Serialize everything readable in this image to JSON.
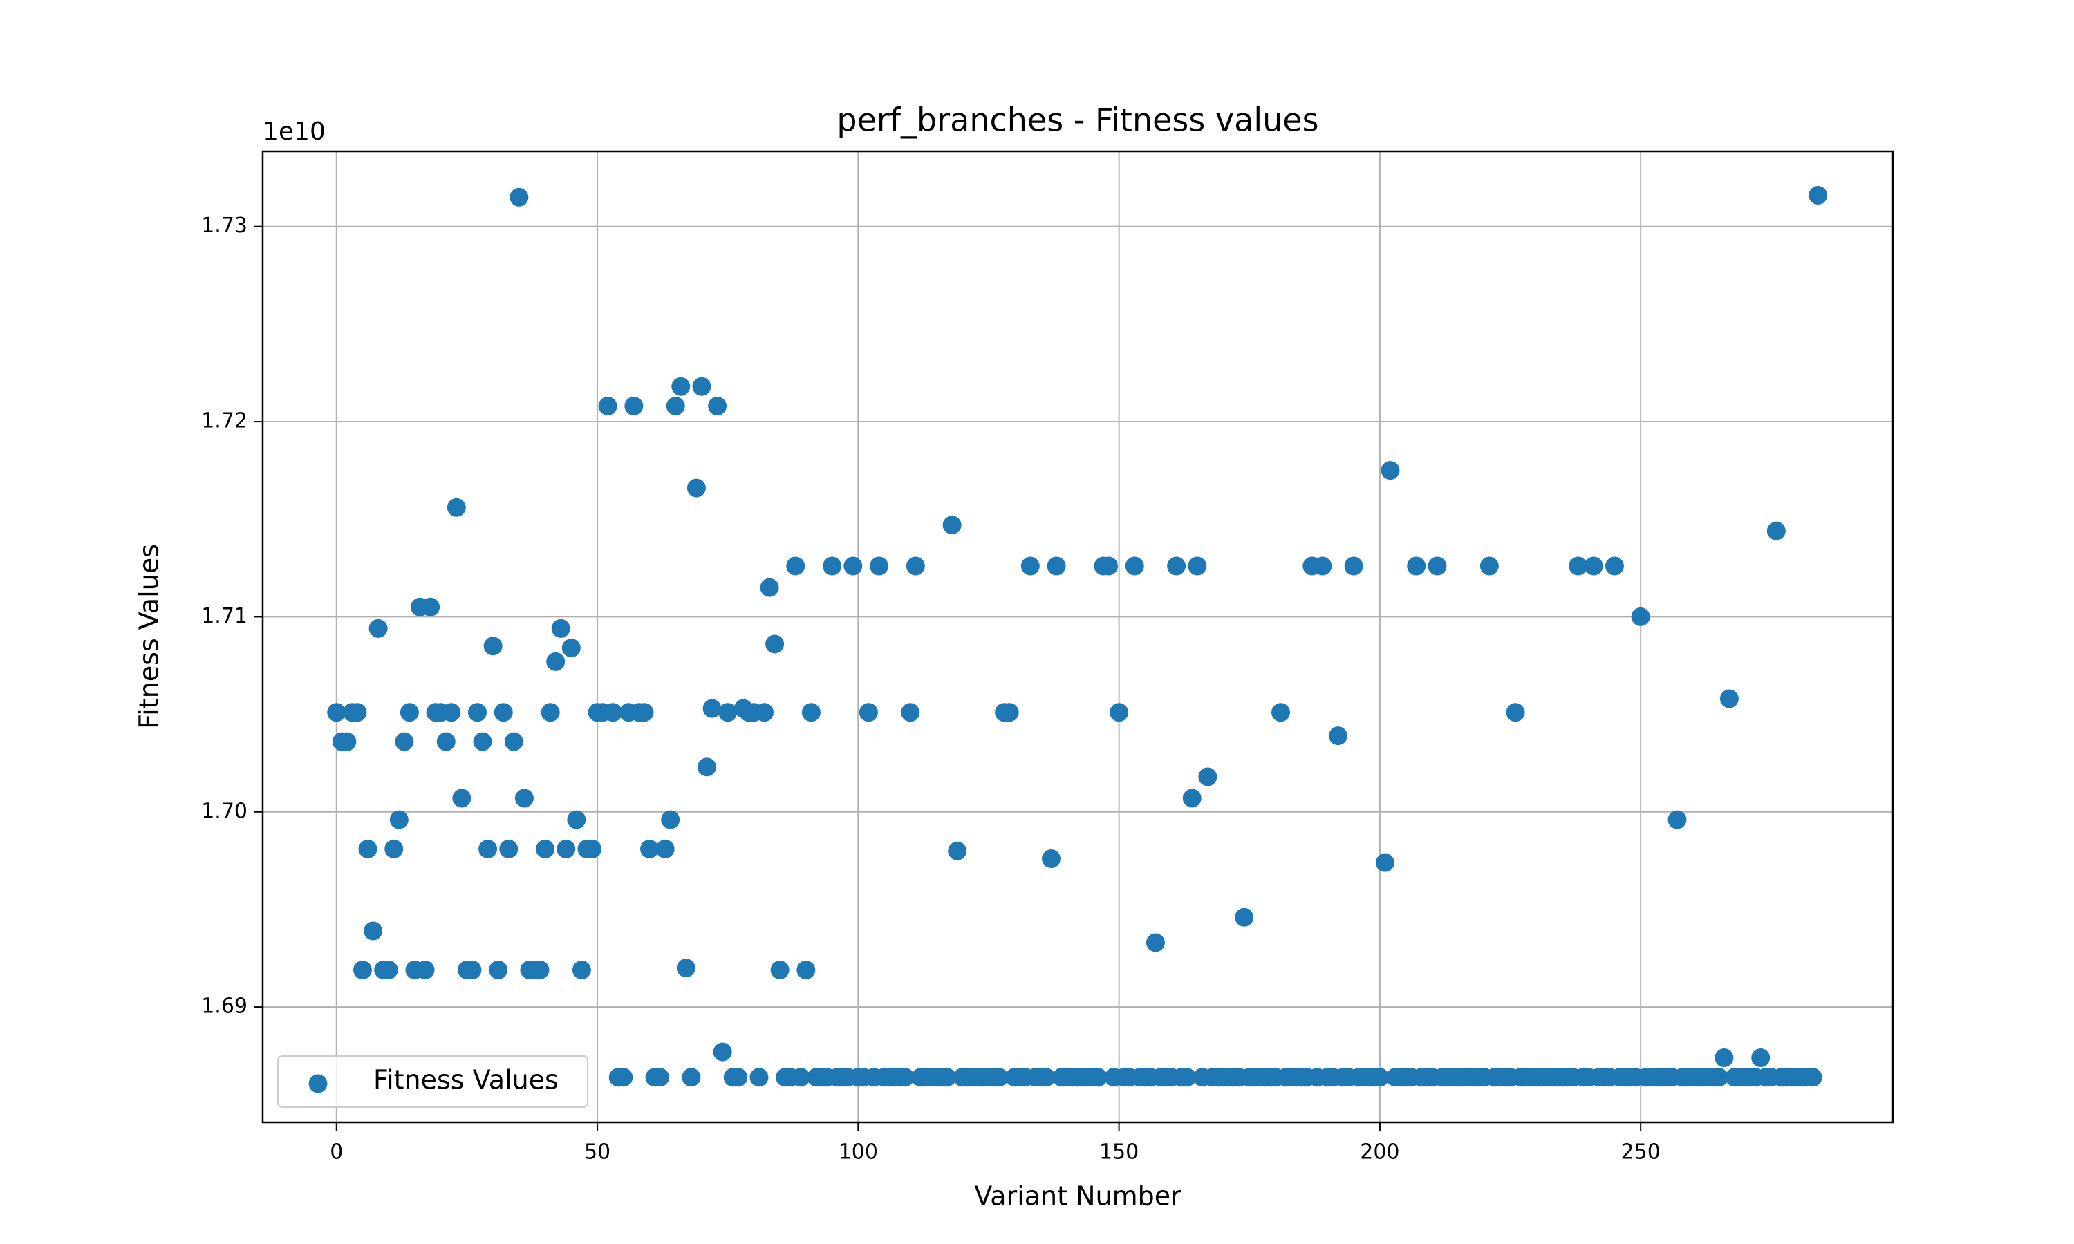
{
  "chart_data": {
    "type": "scatter",
    "title": "perf_branches - Fitness values",
    "xlabel": "Variant Number",
    "ylabel": "Fitness Values",
    "y_offset_label": "1e10",
    "xlim": [
      -14.15,
      298.35
    ],
    "ylim": [
      1.68409,
      1.73385
    ],
    "xticks": [
      0,
      50,
      100,
      150,
      200,
      250
    ],
    "yticks": [
      {
        "value": 1.69,
        "label": "1.69"
      },
      {
        "value": 1.7,
        "label": "1.70"
      },
      {
        "value": 1.71,
        "label": "1.71"
      },
      {
        "value": 1.72,
        "label": "1.72"
      },
      {
        "value": 1.73,
        "label": "1.73"
      }
    ],
    "grid": true,
    "legend": "lower left",
    "series": [
      {
        "name": "Fitness Values",
        "color": "#1f77b4",
        "x": [
          0,
          1,
          2,
          3,
          4,
          5,
          6,
          7,
          8,
          9,
          10,
          11,
          12,
          13,
          14,
          15,
          16,
          17,
          18,
          19,
          20,
          21,
          22,
          23,
          24,
          25,
          26,
          27,
          28,
          29,
          30,
          31,
          32,
          33,
          34,
          35,
          36,
          37,
          38,
          39,
          40,
          41,
          42,
          43,
          44,
          45,
          46,
          47,
          48,
          49,
          50,
          51,
          52,
          53,
          54,
          55,
          56,
          57,
          58,
          59,
          60,
          61,
          62,
          63,
          64,
          65,
          66,
          67,
          68,
          69,
          70,
          71,
          72,
          73,
          74,
          75,
          76,
          77,
          78,
          79,
          80,
          81,
          82,
          83,
          84,
          85,
          86,
          87,
          88,
          89,
          90,
          91,
          92,
          93,
          94,
          95,
          96,
          97,
          98,
          99,
          100,
          101,
          102,
          103,
          104,
          105,
          106,
          107,
          108,
          109,
          110,
          111,
          112,
          113,
          114,
          115,
          116,
          117,
          118,
          119,
          120,
          121,
          122,
          123,
          124,
          125,
          126,
          127,
          128,
          129,
          130,
          131,
          132,
          133,
          134,
          135,
          136,
          137,
          138,
          139,
          140,
          141,
          142,
          143,
          144,
          145,
          146,
          147,
          148,
          149,
          150,
          151,
          152,
          153,
          154,
          155,
          156,
          157,
          158,
          159,
          160,
          161,
          162,
          163,
          164,
          165,
          166,
          167,
          168,
          169,
          170,
          171,
          172,
          173,
          174,
          175,
          176,
          177,
          178,
          179,
          180,
          181,
          182,
          183,
          184,
          185,
          186,
          187,
          188,
          189,
          190,
          191,
          192,
          193,
          194,
          195,
          196,
          197,
          198,
          199,
          200,
          201,
          202,
          203,
          204,
          205,
          206,
          207,
          208,
          209,
          210,
          211,
          212,
          213,
          214,
          215,
          216,
          217,
          218,
          219,
          220,
          221,
          222,
          223,
          224,
          225,
          226,
          227,
          228,
          229,
          230,
          231,
          232,
          233,
          234,
          235,
          236,
          237,
          238,
          239,
          240,
          241,
          242,
          243,
          244,
          245,
          246,
          247,
          248,
          249,
          250,
          251,
          252,
          253,
          254,
          255,
          256,
          257,
          258,
          259,
          260,
          261,
          262,
          263,
          264,
          265,
          266,
          267,
          268,
          269,
          270,
          271,
          272,
          273,
          274,
          275,
          276,
          277,
          278,
          279,
          280,
          281,
          282,
          283,
          284
        ],
        "values": [
          1.7051,
          1.7036,
          1.7036,
          1.7051,
          1.7051,
          1.6919,
          1.6981,
          1.6939,
          1.7094,
          1.6919,
          1.6919,
          1.6981,
          1.6996,
          1.7036,
          1.7051,
          1.6919,
          1.7105,
          1.6919,
          1.7105,
          1.7051,
          1.7051,
          1.7036,
          1.7051,
          1.7156,
          1.7007,
          1.6919,
          1.6919,
          1.7051,
          1.7036,
          1.6981,
          1.7085,
          1.6919,
          1.7051,
          1.6981,
          1.7036,
          1.7315,
          1.7007,
          1.6919,
          1.6919,
          1.6919,
          1.6981,
          1.7051,
          1.7077,
          1.7094,
          1.6981,
          1.7084,
          1.6996,
          1.6919,
          1.6981,
          1.6981,
          1.7051,
          1.7051,
          1.7208,
          1.7051,
          1.6864,
          1.6864,
          1.7051,
          1.7208,
          1.7051,
          1.7051,
          1.6981,
          1.6864,
          1.6864,
          1.6981,
          1.6996,
          1.7208,
          1.7218,
          1.692,
          1.6864,
          1.7166,
          1.7218,
          1.7023,
          1.7053,
          1.7208,
          1.6877,
          1.7051,
          1.6864,
          1.6864,
          1.7053,
          1.7051,
          1.7051,
          1.6864,
          1.7051,
          1.7115,
          1.7086,
          1.6919,
          1.6864,
          1.6864,
          1.7126,
          1.6864,
          1.6919,
          1.7051,
          1.6864,
          1.6864,
          1.6864,
          1.7126,
          1.6864,
          1.6864,
          1.6864,
          1.7126,
          1.6864,
          1.6864,
          1.7051,
          1.6864,
          1.7126,
          1.6864,
          1.6864,
          1.6864,
          1.6864,
          1.6864,
          1.7051,
          1.7126,
          1.6864,
          1.6864,
          1.6864,
          1.6864,
          1.6864,
          1.6864,
          1.7147,
          1.698,
          1.6864,
          1.6864,
          1.6864,
          1.6864,
          1.6864,
          1.6864,
          1.6864,
          1.6864,
          1.7051,
          1.7051,
          1.6864,
          1.6864,
          1.6864,
          1.7126,
          1.6864,
          1.6864,
          1.6864,
          1.6976,
          1.7126,
          1.6864,
          1.6864,
          1.6864,
          1.6864,
          1.6864,
          1.6864,
          1.6864,
          1.6864,
          1.7126,
          1.7126,
          1.6864,
          1.7051,
          1.6864,
          1.6864,
          1.7126,
          1.6864,
          1.6864,
          1.6864,
          1.6933,
          1.6864,
          1.6864,
          1.6864,
          1.7126,
          1.6864,
          1.6864,
          1.7007,
          1.7126,
          1.6864,
          1.7018,
          1.6864,
          1.6864,
          1.6864,
          1.6864,
          1.6864,
          1.6864,
          1.6946,
          1.6864,
          1.6864,
          1.6864,
          1.6864,
          1.6864,
          1.6864,
          1.7051,
          1.6864,
          1.6864,
          1.6864,
          1.6864,
          1.6864,
          1.7126,
          1.6864,
          1.7126,
          1.6864,
          1.6864,
          1.7039,
          1.6864,
          1.6864,
          1.7126,
          1.6864,
          1.6864,
          1.6864,
          1.6864,
          1.6864,
          1.6974,
          1.7175,
          1.6864,
          1.6864,
          1.6864,
          1.6864,
          1.7126,
          1.6864,
          1.6864,
          1.6864,
          1.7126,
          1.6864,
          1.6864,
          1.6864,
          1.6864,
          1.6864,
          1.6864,
          1.6864,
          1.6864,
          1.6864,
          1.7126,
          1.6864,
          1.6864,
          1.6864,
          1.6864,
          1.7051,
          1.6864,
          1.6864,
          1.6864,
          1.6864,
          1.6864,
          1.6864,
          1.6864,
          1.6864,
          1.6864,
          1.6864,
          1.6864,
          1.7126,
          1.6864,
          1.6864,
          1.7126,
          1.6864,
          1.6864,
          1.6864,
          1.7126,
          1.6864,
          1.6864,
          1.6864,
          1.6864,
          1.71,
          1.6864,
          1.6864,
          1.6864,
          1.6864,
          1.6864,
          1.6864,
          1.6996,
          1.6864,
          1.6864,
          1.6864,
          1.6864,
          1.6864,
          1.6864,
          1.6864,
          1.6864,
          1.6874,
          1.7058,
          1.6864,
          1.6864,
          1.6864,
          1.6864,
          1.6864,
          1.6874,
          1.6864,
          1.6864,
          1.7144,
          1.6864,
          1.6864,
          1.6864,
          1.6864,
          1.6864,
          1.6864,
          1.6864,
          1.7316
        ]
      }
    ]
  }
}
